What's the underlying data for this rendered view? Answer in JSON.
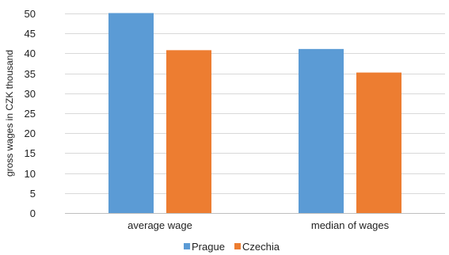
{
  "chart_data": {
    "type": "bar",
    "categories": [
      "average wage",
      "median of wages"
    ],
    "series": [
      {
        "name": "Prague",
        "values": [
          50.1,
          41.1
        ],
        "color": "#5b9bd5"
      },
      {
        "name": "Czechia",
        "values": [
          40.8,
          35.2
        ],
        "color": "#ed7d31"
      }
    ],
    "ylabel": "gross wages in CZK thousand",
    "xlabel": "",
    "ylim": [
      0,
      50
    ],
    "yticks": [
      0,
      5,
      10,
      15,
      20,
      25,
      30,
      35,
      40,
      45,
      50
    ],
    "grid": true,
    "legend_position": "bottom"
  }
}
